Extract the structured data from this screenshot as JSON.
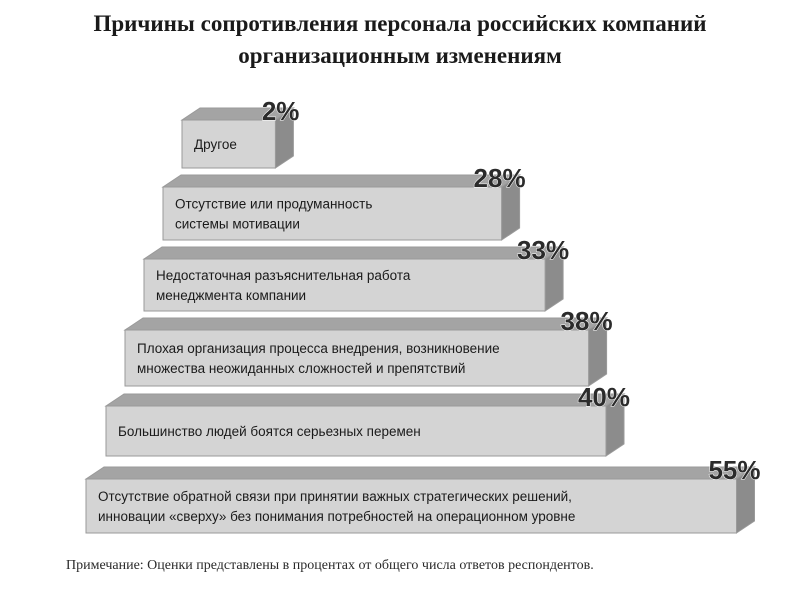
{
  "header": {
    "title_line_1": "Причины сопротивления персонала российских компаний",
    "title_line_2": "организационным изменениям"
  },
  "note": "Примечание: Оценки представлены в процентах от общего числа ответов респондентов.",
  "colors": {
    "front": "#d4d4d4",
    "top": "#a4a4a4",
    "side": "#8c8c8c",
    "edge": "#9a9a9a"
  },
  "chart_data": {
    "type": "bar",
    "title": "Причины сопротивления персонала российских компаний организационным изменениям",
    "unit": "%",
    "categories": [
      [
        "Другое"
      ],
      [
        "Отсутствие или продуманность",
        "системы мотивации"
      ],
      [
        "Недостаточная разъяснительная работа",
        "менеджмента компании"
      ],
      [
        "Плохая организация процесса внедрения, возникновение",
        "множества неожиданных сложностей и препятствий"
      ],
      [
        "Большинство людей боятся серьезных перемен"
      ],
      [
        "Отсутствие обратной связи при принятии  важных стратегических решений,",
        "инновации «сверху» без понимания потребностей на операционном уровне"
      ]
    ],
    "values": [
      2,
      28,
      33,
      38,
      40,
      55
    ],
    "value_labels": [
      "2%",
      "28%",
      "33%",
      "38%",
      "40%",
      "55%"
    ]
  }
}
